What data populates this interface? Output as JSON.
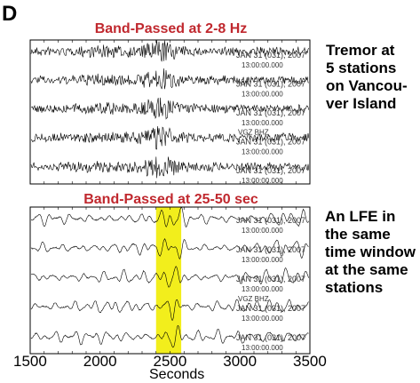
{
  "panel_label": "D",
  "top_panel": {
    "title": "Band-Passed at 2-8 Hz",
    "note": "Tremor at\n5 stations\non Vancou-\nver Island",
    "traces": [
      {
        "date": "JAN 31 (031), 2007",
        "time": "13:00:00.000"
      },
      {
        "date": "JAN 31 (031), 2007",
        "time": "13:00:00.000"
      },
      {
        "date": "JAN 31 (031), 2007",
        "time": "13:00:00.000"
      },
      {
        "station": "VGZ  BHZ",
        "date": "JAN 31 (031), 2007",
        "time": "13:00:00.000"
      },
      {
        "date": "JAN 31 (031), 2007",
        "time": "13:00:00.000"
      }
    ]
  },
  "bottom_panel": {
    "title": "Band-Passed at 25-50 sec",
    "note": "An LFE in\nthe same\ntime window\nat the same\nstations",
    "traces": [
      {
        "date": "JAN 31 (031), 2007",
        "time": "13:00:00.000"
      },
      {
        "date": "JAN 31 (031), 2007",
        "time": "13:00:00.000"
      },
      {
        "date": "JAN 31 (031), 2007",
        "time": "13:00:00.000"
      },
      {
        "station": "VGZ  BHZ",
        "date": "JAN 31 (031), 2007",
        "time": "13:00:00.000"
      },
      {
        "date": "JAN 31 (031), 2007",
        "time": "13:00:00.000"
      }
    ],
    "highlight": {
      "from": 2400,
      "to": 2580,
      "color": "#f2ee1c"
    }
  },
  "x_axis": {
    "label": "Seconds",
    "min": 1500,
    "max": 3500,
    "ticks": [
      "1500",
      "2000",
      "2500",
      "3000",
      "3500"
    ]
  },
  "colors": {
    "title": "#c0282e",
    "trace": "#000000",
    "highlight": "#f2ee1c"
  }
}
